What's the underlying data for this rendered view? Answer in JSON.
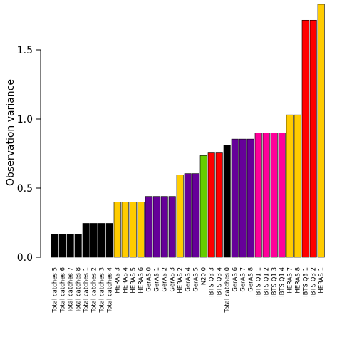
{
  "chart_data": {
    "type": "bar",
    "title": "",
    "xlabel": "",
    "ylabel": "Observation variance",
    "ylim": [
      0,
      1.85
    ],
    "yticks": [
      "0.0",
      "0.5",
      "1.0",
      "1.5"
    ],
    "grid": false,
    "categories": [
      "Total catches 5",
      "Total catches 6",
      "Total catches 7",
      "Total catches 8",
      "Total catches 1",
      "Total catches 2",
      "Total catches 3",
      "Total catches 4",
      "HERAS 3",
      "HERAS 4",
      "HERAS 5",
      "HERAS 6",
      "GerAS 0",
      "GerAS 1",
      "GerAS 2",
      "GerAS 3",
      "HERAS 2",
      "GerAS 4",
      "GerAS 5",
      "N20 0",
      "IBTS Q3 3",
      "IBTS Q3 4",
      "Total catches 0",
      "GerAS 6",
      "GerAS 7",
      "GerAS 8",
      "IBTS Q1 1",
      "IBTS Q1 2",
      "IBTS Q1 3",
      "IBTS Q1 4",
      "HERAS 7",
      "HERAS 8",
      "IBTS Q3 1",
      "IBTS Q3 2",
      "HERAS 1"
    ],
    "values": [
      0.165,
      0.165,
      0.165,
      0.165,
      0.245,
      0.245,
      0.245,
      0.245,
      0.4,
      0.4,
      0.4,
      0.4,
      0.44,
      0.44,
      0.44,
      0.44,
      0.595,
      0.605,
      0.605,
      0.735,
      0.755,
      0.755,
      0.81,
      0.855,
      0.855,
      0.855,
      0.9,
      0.9,
      0.9,
      0.9,
      1.03,
      1.03,
      1.715,
      1.715,
      1.83
    ],
    "colors": [
      "#000000",
      "#000000",
      "#000000",
      "#000000",
      "#000000",
      "#000000",
      "#000000",
      "#000000",
      "#FFCC00",
      "#FFCC00",
      "#FFCC00",
      "#FFCC00",
      "#660099",
      "#660099",
      "#660099",
      "#660099",
      "#FFCC00",
      "#660099",
      "#660099",
      "#66CC00",
      "#FF0000",
      "#FF0000",
      "#000000",
      "#660099",
      "#660099",
      "#660099",
      "#FF0099",
      "#FF0099",
      "#FF0099",
      "#FF0099",
      "#FFCC00",
      "#FFCC00",
      "#FF0000",
      "#FF0000",
      "#FFCC00"
    ]
  }
}
